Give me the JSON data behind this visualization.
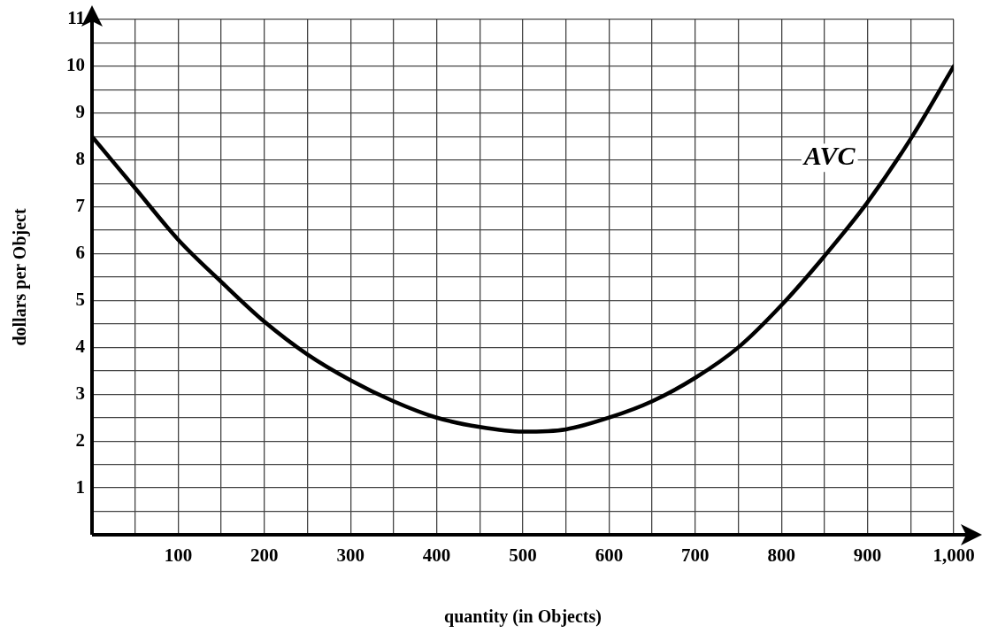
{
  "chart_data": {
    "type": "line",
    "xlabel": "quantity (in Objects)",
    "ylabel": "dollars per Object",
    "x": [
      0,
      50,
      100,
      150,
      200,
      250,
      300,
      350,
      400,
      450,
      500,
      550,
      600,
      650,
      700,
      750,
      800,
      850,
      900,
      950,
      1000
    ],
    "series": [
      {
        "name": "AVC",
        "color": "#000000",
        "values": [
          8.5,
          7.4,
          6.3,
          5.4,
          4.55,
          3.85,
          3.3,
          2.85,
          2.5,
          2.3,
          2.2,
          2.25,
          2.5,
          2.85,
          3.35,
          4.0,
          4.9,
          5.95,
          7.1,
          8.45,
          10.0
        ]
      }
    ],
    "xlim": [
      0,
      1000
    ],
    "xticks": [
      {
        "value": 50,
        "label": null
      },
      100,
      {
        "value": 150,
        "label": null
      },
      200,
      {
        "value": 250,
        "label": null
      },
      300,
      {
        "value": 350,
        "label": null
      },
      400,
      {
        "value": 450,
        "label": null
      },
      500,
      {
        "value": 550,
        "label": null
      },
      600,
      {
        "value": 650,
        "label": null
      },
      700,
      {
        "value": 750,
        "label": null
      },
      800,
      {
        "value": 850,
        "label": null
      },
      900,
      {
        "value": 950,
        "label": null
      },
      {
        "value": 1000,
        "label": "1,000"
      }
    ],
    "ylim": [
      0,
      11
    ],
    "yticks": [
      {
        "value": 0.5,
        "label": null
      },
      1,
      {
        "value": 1.5,
        "label": null
      },
      2,
      {
        "value": 2.5,
        "label": null
      },
      3,
      {
        "value": 3.5,
        "label": null
      },
      4,
      {
        "value": 4.5,
        "label": null
      },
      5,
      {
        "value": 5.5,
        "label": null
      },
      6,
      {
        "value": 6.5,
        "label": null
      },
      7,
      {
        "value": 7.5,
        "label": null
      },
      8,
      {
        "value": 8.5,
        "label": null
      },
      9,
      {
        "value": 9.5,
        "label": null
      },
      10,
      {
        "value": 10.5,
        "label": null
      },
      11
    ],
    "grid": true,
    "legend": false,
    "marker": "none",
    "line_style": "solid"
  }
}
